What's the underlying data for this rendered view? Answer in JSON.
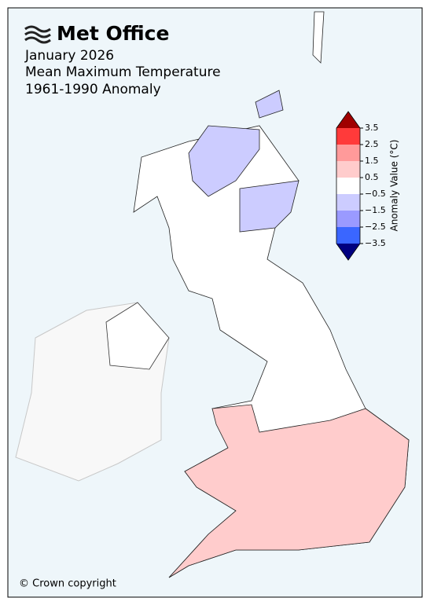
{
  "header": {
    "logo": "Met Office",
    "title_lines": [
      "January 2026",
      "Mean Maximum Temperature",
      "1961-1990 Anomaly"
    ]
  },
  "legend": {
    "label": "Anomaly Value (°C)",
    "ticks": [
      3.5,
      2.5,
      1.5,
      0.5,
      {
        "value": -0.5,
        "label": "−0.5"
      },
      {
        "value": -1.5,
        "label": "−1.5"
      },
      {
        "value": -2.5,
        "label": "−2.5"
      },
      {
        "value": -3.5,
        "label": "−3.5"
      }
    ],
    "colors": [
      "#ff3a3a",
      "#ff9a9a",
      "#ffcccc",
      "#ffffff",
      "#ccccff",
      "#9a9aff",
      "#3a66ff"
    ],
    "over_color": "#a00000",
    "under_color": "#000080"
  },
  "footer": {
    "copyright": "© Crown copyright"
  }
}
